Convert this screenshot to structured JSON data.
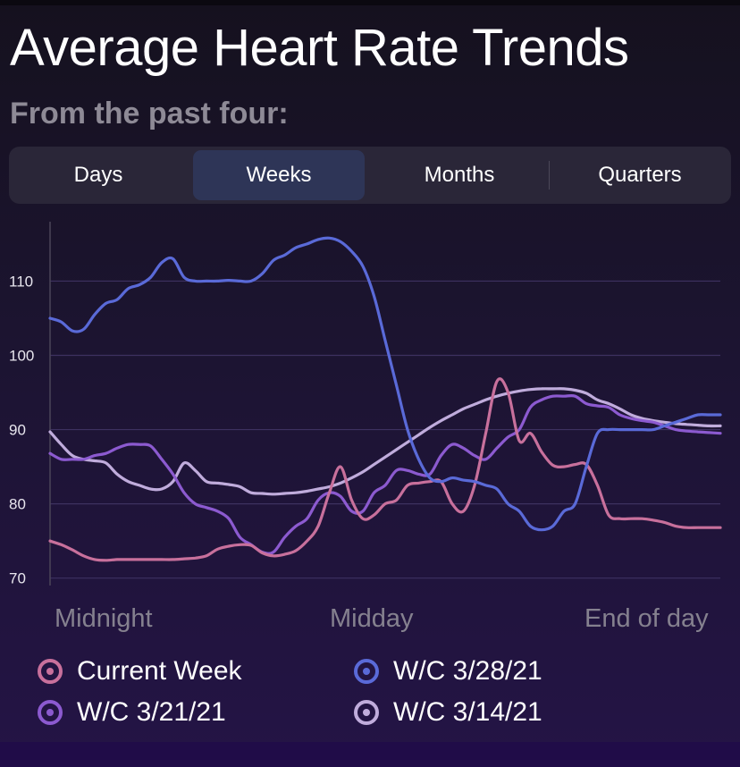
{
  "header": {
    "title": "Average Heart Rate Trends",
    "subtitle": "From the past four:"
  },
  "segments": {
    "items": [
      {
        "label": "Days"
      },
      {
        "label": "Weeks"
      },
      {
        "label": "Months"
      },
      {
        "label": "Quarters"
      }
    ],
    "selected": "Weeks"
  },
  "colors": {
    "current_week": "#c8709c",
    "wc_3_28": "#5a6ad8",
    "wc_3_21": "#8c5ad0",
    "wc_3_14": "#c0acdc",
    "grid": "#3d3160",
    "axis": "#4a4458"
  },
  "chart_data": {
    "type": "line",
    "x_tick_labels": [
      "Midnight",
      "Midday",
      "End of day"
    ],
    "yticks": [
      70,
      80,
      90,
      100,
      110
    ],
    "ylim": [
      69,
      118
    ],
    "grid": true,
    "legend_position": "bottom",
    "x": [
      0,
      1,
      2,
      3,
      4,
      5,
      6,
      7,
      8,
      9,
      10,
      11,
      12,
      13,
      14,
      15,
      16,
      17,
      18,
      19,
      20,
      21,
      22,
      23,
      24,
      25,
      26,
      27,
      28,
      29,
      30,
      31,
      32,
      33,
      34,
      35,
      36,
      37,
      38,
      39,
      40,
      41,
      42,
      43,
      44,
      45,
      46,
      47,
      48,
      49,
      50,
      51,
      52,
      53,
      54,
      55,
      56,
      57,
      58,
      59,
      60
    ],
    "series": [
      {
        "name": "Current Week",
        "color_key": "current_week",
        "values": [
          75,
          74.5,
          73.8,
          73,
          72.5,
          72.4,
          72.5,
          72.5,
          72.5,
          72.5,
          72.5,
          72.5,
          72.6,
          72.7,
          73,
          73.9,
          74.3,
          74.5,
          74.4,
          73.4,
          73,
          73.2,
          73.7,
          75,
          77,
          81.5,
          85,
          80.5,
          78,
          78.5,
          80,
          80.5,
          82.5,
          82.8,
          83,
          83,
          80,
          79,
          82.5,
          89.5,
          96.5,
          95,
          88.5,
          89.5,
          87,
          85.2,
          85,
          85.3,
          85.3,
          82.5,
          78.5,
          78,
          78,
          78,
          77.8,
          77.5,
          77,
          76.8,
          76.8,
          76.8,
          76.8
        ]
      },
      {
        "name": "W/C 3/28/21",
        "color_key": "wc_3_28",
        "values": [
          105,
          104.5,
          103.3,
          103.5,
          105.5,
          107,
          107.5,
          109,
          109.5,
          110.5,
          112.5,
          113,
          110.5,
          110,
          110,
          110,
          110.1,
          110,
          110,
          111,
          112.8,
          113.5,
          114.5,
          115,
          115.6,
          115.8,
          115.3,
          114,
          112,
          108,
          102,
          96,
          90,
          86,
          83.5,
          83,
          83.5,
          83.2,
          83,
          82.5,
          82,
          80,
          79,
          77,
          76.5,
          77,
          79,
          80,
          85,
          89.5,
          90,
          90,
          90,
          90,
          90,
          90.5,
          91,
          91.5,
          92,
          92,
          92
        ]
      },
      {
        "name": "W/C 3/21/21",
        "color_key": "wc_3_21",
        "values": [
          86.8,
          86,
          86,
          86,
          86.5,
          86.8,
          87.5,
          88,
          88,
          87.8,
          86,
          84,
          81.5,
          80,
          79.5,
          79,
          78,
          75.5,
          74.5,
          73.5,
          73.5,
          75.5,
          77,
          78,
          80.5,
          81.5,
          81,
          79,
          79,
          81.5,
          82.5,
          84.5,
          84.5,
          84,
          84,
          86.5,
          88,
          87.5,
          86.5,
          86,
          87.5,
          89,
          90,
          93,
          94,
          94.5,
          94.5,
          94.5,
          93.5,
          93.2,
          93,
          92,
          91.5,
          91.2,
          91,
          90.5,
          90,
          89.8,
          89.7,
          89.6,
          89.5
        ]
      },
      {
        "name": "W/C 3/14/21",
        "color_key": "wc_3_14",
        "values": [
          89.7,
          88,
          86.5,
          86,
          85.8,
          85.5,
          84,
          83,
          82.5,
          82,
          82,
          83,
          85.5,
          84.5,
          83,
          82.8,
          82.6,
          82.3,
          81.5,
          81.4,
          81.3,
          81.4,
          81.5,
          81.7,
          82,
          82.3,
          82.8,
          83.5,
          84.3,
          85.3,
          86.3,
          87.3,
          88.3,
          89.3,
          90.3,
          91.2,
          92,
          92.8,
          93.4,
          94,
          94.5,
          94.9,
          95.2,
          95.4,
          95.5,
          95.5,
          95.5,
          95.3,
          94.9,
          94,
          93.5,
          92.8,
          92,
          91.5,
          91.2,
          91,
          90.8,
          90.7,
          90.6,
          90.5,
          90.5
        ]
      }
    ]
  },
  "legend": {
    "items": [
      {
        "label": "Current Week",
        "color_key": "current_week"
      },
      {
        "label": "W/C 3/28/21",
        "color_key": "wc_3_28"
      },
      {
        "label": "W/C 3/21/21",
        "color_key": "wc_3_21"
      },
      {
        "label": "W/C 3/14/21",
        "color_key": "wc_3_14"
      }
    ]
  }
}
